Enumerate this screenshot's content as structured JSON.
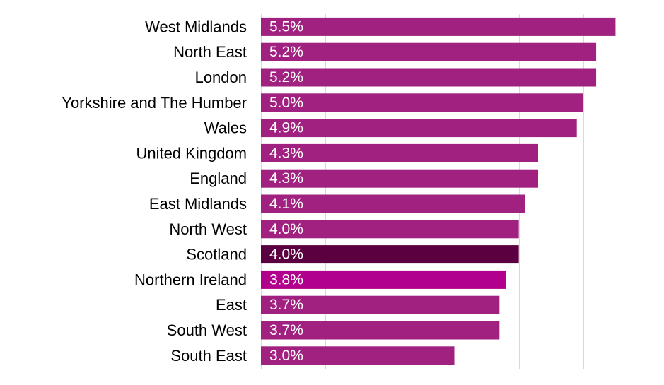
{
  "chart_data": {
    "type": "bar",
    "orientation": "horizontal",
    "categories": [
      "West Midlands",
      "North East",
      "London",
      "Yorkshire and The Humber",
      "Wales",
      "United Kingdom",
      "England",
      "East Midlands",
      "North West",
      "Scotland",
      "Northern Ireland",
      "East",
      "South West",
      "South East"
    ],
    "values": [
      5.5,
      5.2,
      5.2,
      5.0,
      4.9,
      4.3,
      4.3,
      4.1,
      4.0,
      4.0,
      3.8,
      3.7,
      3.7,
      3.0
    ],
    "value_labels": [
      "5.5%",
      "5.2%",
      "5.2%",
      "5.0%",
      "4.9%",
      "4.3%",
      "4.3%",
      "4.1%",
      "4.0%",
      "4.0%",
      "3.8%",
      "3.7%",
      "3.7%",
      "3.0%"
    ],
    "xlim": [
      0,
      6
    ],
    "grid": "vertical",
    "legend": "none",
    "colors": {
      "default": "#a0217f",
      "Scotland": "#5a0040",
      "Northern Ireland": "#b0008c",
      "grid": "#d9d9d9",
      "label": "#000000",
      "value_text": "#ffffff"
    }
  }
}
